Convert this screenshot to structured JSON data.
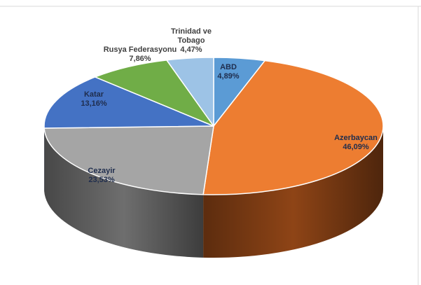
{
  "chart_data": {
    "type": "pie",
    "style": "3d",
    "title": "",
    "slices": [
      {
        "name": "ABD",
        "value": 4.89,
        "value_label": "4,89%",
        "color": "#5b9bd5",
        "side_color": "#3d6fa0",
        "label_lines": [
          "ABD"
        ]
      },
      {
        "name": "Azerbaycan",
        "value": 46.09,
        "value_label": "46,09%",
        "color": "#ed7d31",
        "side_color": "#8e4416",
        "label_lines": [
          "Azerbaycan"
        ]
      },
      {
        "name": "Cezayir",
        "value": 23.53,
        "value_label": "23,53%",
        "color": "#a5a5a5",
        "side_color": "#6e6e6e",
        "label_lines": [
          "Cezayir"
        ]
      },
      {
        "name": "Katar",
        "value": 13.16,
        "value_label": "13,16%",
        "color": "#4472c4",
        "side_color": "#2c4d87",
        "label_lines": [
          "Katar"
        ]
      },
      {
        "name": "Rusya Federasyonu",
        "value": 7.86,
        "value_label": "7,86%",
        "color": "#70ad47",
        "side_color": "#4a7a2d",
        "label_lines": [
          "Rusya Federasyonu"
        ]
      },
      {
        "name": "Trinidad ve Tobago",
        "value": 4.47,
        "value_label": "4,47%",
        "color": "#9dc3e6",
        "side_color": "#6f93b5",
        "label_lines": [
          "Trinidad ve",
          "Tobago"
        ]
      }
    ]
  }
}
